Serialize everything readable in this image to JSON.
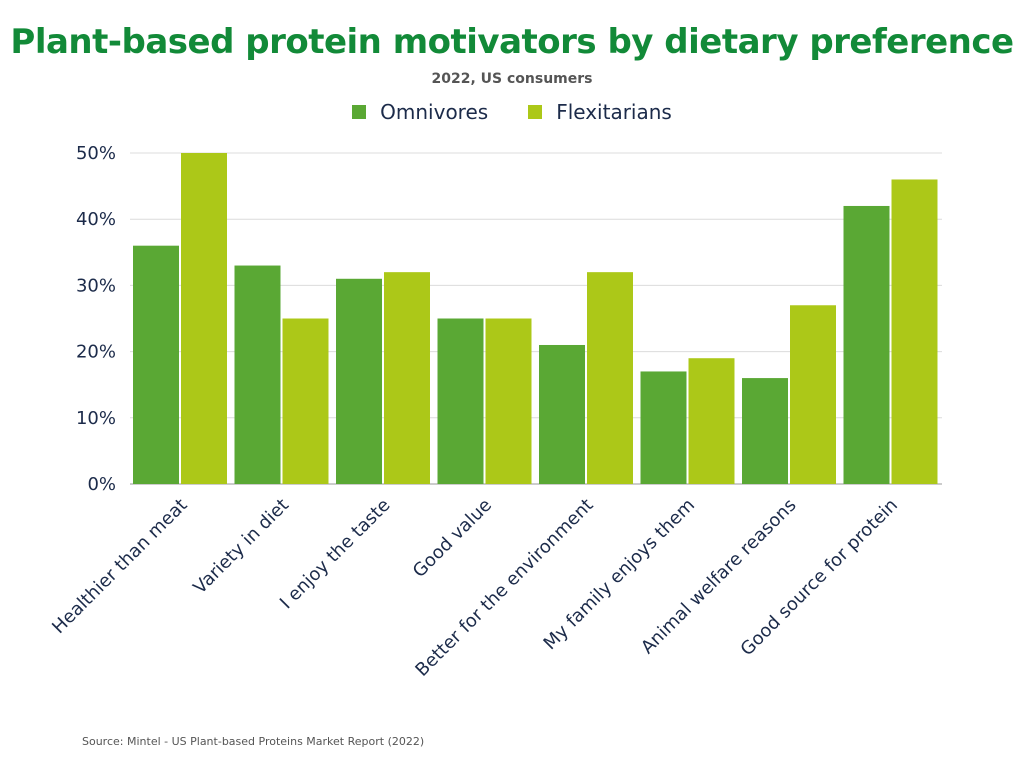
{
  "chart_data": {
    "type": "bar",
    "title": "Plant-based protein motivators by dietary preference",
    "subtitle": "2022, US consumers",
    "categories": [
      "Healthier than meat",
      "Variety in diet",
      "I enjoy the taste",
      "Good value",
      "Better for the environment",
      "My family enjoys them",
      "Animal welfare reasons",
      "Good source for protein"
    ],
    "series": [
      {
        "name": "Omnivores",
        "color": "#5aa834",
        "values": [
          36,
          33,
          31,
          25,
          21,
          17,
          16,
          42
        ]
      },
      {
        "name": "Flexitarians",
        "color": "#acc818",
        "values": [
          50,
          25,
          32,
          25,
          32,
          19,
          27,
          46
        ]
      }
    ],
    "ylim": [
      0,
      50
    ],
    "yticks": [
      "0%",
      "10%",
      "20%",
      "30%",
      "40%",
      "50%"
    ],
    "ytick_values": [
      0,
      10,
      20,
      30,
      40,
      50
    ],
    "xlabel": "",
    "ylabel": "",
    "grid": true,
    "legend_position": "top-center",
    "source": "Source: Mintel - US Plant-based Proteins Market Report (2022)"
  }
}
